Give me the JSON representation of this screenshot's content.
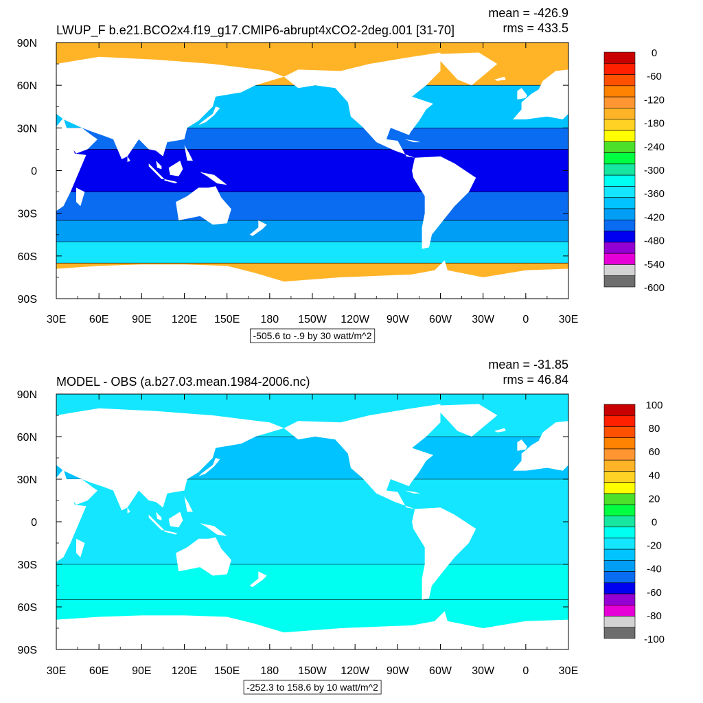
{
  "chart_data": [
    {
      "type": "heatmap",
      "subtype": "filled-contour-map",
      "title": "LWUP_F b.e21.BCO2x4.f19_g17.CMIP6-abrupt4xCO2-2deg.001 [31-70]",
      "stats": {
        "mean": "mean = -426.9",
        "rms": "rms = 433.5"
      },
      "contour_info": "-505.6 to -.9 by 30 watt/m^2",
      "x_ticks": [
        "30E",
        "60E",
        "90E",
        "120E",
        "150E",
        "180",
        "150W",
        "120W",
        "90W",
        "60W",
        "30W",
        "0",
        "30E"
      ],
      "y_ticks": [
        "90N",
        "60N",
        "30N",
        "0",
        "30S",
        "60S",
        "90S"
      ],
      "xlim": [
        30,
        390
      ],
      "ylim": [
        -90,
        90
      ],
      "colorbar_labels": [
        "0",
        "-60",
        "-120",
        "-180",
        "-240",
        "-300",
        "-360",
        "-420",
        "-480",
        "-540",
        "-600"
      ],
      "colorbar_levels": [
        -600,
        -570,
        -540,
        -510,
        -480,
        -450,
        -420,
        -390,
        -360,
        -330,
        -300,
        -270,
        -240,
        -210,
        -180,
        -150,
        -120,
        -90,
        -60,
        -30,
        0
      ],
      "colorbar_colors": [
        "#6e6e6e",
        "#d3d3d3",
        "#e600d7",
        "#9400d3",
        "#0000f0",
        "#0a6cf0",
        "#009ef5",
        "#00c3ff",
        "#14e6ff",
        "#00fff0",
        "#17e6a0",
        "#00ff40",
        "#4ce02b",
        "#ffff00",
        "#ffd224",
        "#ffb428",
        "#ff9632",
        "#ff8200",
        "#ff5000",
        "#ff2000",
        "#c80000"
      ],
      "field_bands": [
        {
          "lat": [
            60,
            90
          ],
          "value": -150
        },
        {
          "lat": [
            30,
            60
          ],
          "value": -400
        },
        {
          "lat": [
            15,
            30
          ],
          "value": -450
        },
        {
          "lat": [
            -15,
            15
          ],
          "value": -490
        },
        {
          "lat": [
            -35,
            -15
          ],
          "value": -470
        },
        {
          "lat": [
            -50,
            -35
          ],
          "value": -420
        },
        {
          "lat": [
            -65,
            -50
          ],
          "value": -360
        },
        {
          "lat": [
            -90,
            -65
          ],
          "value": -150
        }
      ]
    },
    {
      "type": "heatmap",
      "subtype": "filled-contour-map",
      "title": "MODEL - OBS (a.b27.03.mean.1984-2006.nc)",
      "stats": {
        "mean": "mean = -31.85",
        "rms": "rms = 46.84"
      },
      "contour_info": "-252.3 to 158.6 by 10 watt/m^2",
      "x_ticks": [
        "30E",
        "60E",
        "90E",
        "120E",
        "150E",
        "180",
        "150W",
        "120W",
        "90W",
        "60W",
        "30W",
        "0",
        "30E"
      ],
      "y_ticks": [
        "90N",
        "60N",
        "30N",
        "0",
        "30S",
        "60S",
        "90S"
      ],
      "xlim": [
        30,
        390
      ],
      "ylim": [
        -90,
        90
      ],
      "colorbar_labels": [
        "100",
        "80",
        "60",
        "40",
        "20",
        "0",
        "-20",
        "-40",
        "-60",
        "-80",
        "-100"
      ],
      "colorbar_levels": [
        -100,
        -90,
        -80,
        -70,
        -60,
        -50,
        -40,
        -30,
        -20,
        -10,
        0,
        10,
        20,
        30,
        40,
        50,
        60,
        70,
        80,
        90,
        100
      ],
      "colorbar_colors": [
        "#6e6e6e",
        "#d3d3d3",
        "#e600d7",
        "#9400d3",
        "#0000f0",
        "#0a6cf0",
        "#009ef5",
        "#00c3ff",
        "#14e6ff",
        "#00fff0",
        "#17e6a0",
        "#00ff40",
        "#4ce02b",
        "#ffff00",
        "#ffd224",
        "#ffb428",
        "#ff9632",
        "#ff8200",
        "#ff5000",
        "#ff2000",
        "#c80000"
      ],
      "field_bands": [
        {
          "lat": [
            60,
            90
          ],
          "value": -25
        },
        {
          "lat": [
            30,
            60
          ],
          "value": -35
        },
        {
          "lat": [
            -30,
            30
          ],
          "value": -25
        },
        {
          "lat": [
            -55,
            -30
          ],
          "value": -15
        },
        {
          "lat": [
            -90,
            -55
          ],
          "value": -15
        }
      ]
    }
  ]
}
